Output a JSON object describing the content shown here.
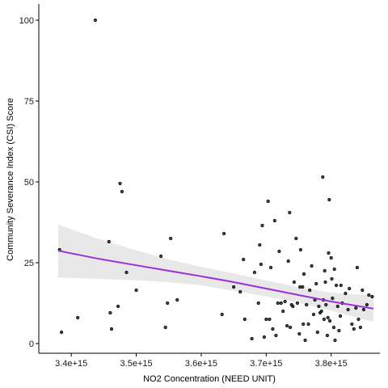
{
  "chart_data": {
    "type": "scatter",
    "xlabel": "NO2 Concentration (NEED UNIT)",
    "ylabel": "Community Severance Index (CSI) Score",
    "xlim": [
      3350000000000000.0,
      3875000000000000.0
    ],
    "ylim": [
      -3,
      105
    ],
    "x_ticks": [
      3400000000000000.0,
      3500000000000000.0,
      3600000000000000.0,
      3700000000000000.0,
      3800000000000000.0
    ],
    "x_tick_labels": [
      "3.4e+15",
      "3.5e+15",
      "3.6e+15",
      "3.7e+15",
      "3.8e+15"
    ],
    "y_ticks": [
      0,
      25,
      50,
      75,
      100
    ],
    "y_tick_labels": [
      "0",
      "25",
      "50",
      "75",
      "100"
    ],
    "grid": false,
    "legend": "none",
    "colors": {
      "points": "#000000",
      "trend": "#9b30d9",
      "ribbon": "#e6e6e6",
      "axis": "#000000"
    },
    "points": [
      {
        "x": 3382000000000000.0,
        "y": 29
      },
      {
        "x": 3385000000000000.0,
        "y": 3.5
      },
      {
        "x": 3410000000000000.0,
        "y": 8
      },
      {
        "x": 3437000000000000.0,
        "y": 100
      },
      {
        "x": 3458000000000000.0,
        "y": 31.5
      },
      {
        "x": 3460000000000000.0,
        "y": 9.5
      },
      {
        "x": 3462000000000000.0,
        "y": 4.5
      },
      {
        "x": 3472000000000000.0,
        "y": 11.5
      },
      {
        "x": 3475000000000000.0,
        "y": 49.5
      },
      {
        "x": 3478000000000000.0,
        "y": 47
      },
      {
        "x": 3485000000000000.0,
        "y": 22
      },
      {
        "x": 3500000000000000.0,
        "y": 16.5
      },
      {
        "x": 3538000000000000.0,
        "y": 27
      },
      {
        "x": 3545000000000000.0,
        "y": 5
      },
      {
        "x": 3548000000000000.0,
        "y": 12.5
      },
      {
        "x": 3553000000000000.0,
        "y": 32.5
      },
      {
        "x": 3563000000000000.0,
        "y": 13.5
      },
      {
        "x": 3632000000000000.0,
        "y": 9
      },
      {
        "x": 3635000000000000.0,
        "y": 34
      },
      {
        "x": 3650000000000000.0,
        "y": 17.5
      },
      {
        "x": 3660000000000000.0,
        "y": 16
      },
      {
        "x": 3665000000000000.0,
        "y": 26
      },
      {
        "x": 3667000000000000.0,
        "y": 7.5
      },
      {
        "x": 3678000000000000.0,
        "y": 1.5
      },
      {
        "x": 3682000000000000.0,
        "y": 22
      },
      {
        "x": 3688000000000000.0,
        "y": 12.5
      },
      {
        "x": 3690000000000000.0,
        "y": 30.5
      },
      {
        "x": 3692000000000000.0,
        "y": 24.5
      },
      {
        "x": 3694000000000000.0,
        "y": 36.5
      },
      {
        "x": 3697000000000000.0,
        "y": 2
      },
      {
        "x": 3700000000000000.0,
        "y": 7.5
      },
      {
        "x": 3703000000000000.0,
        "y": 44
      },
      {
        "x": 3705000000000000.0,
        "y": 7.5
      },
      {
        "x": 3707000000000000.0,
        "y": 23.5
      },
      {
        "x": 3710000000000000.0,
        "y": 4.5
      },
      {
        "x": 3713000000000000.0,
        "y": 38
      },
      {
        "x": 3715000000000000.0,
        "y": 2.5
      },
      {
        "x": 3718000000000000.0,
        "y": 12.5
      },
      {
        "x": 3720000000000000.0,
        "y": 28.5
      },
      {
        "x": 3723000000000000.0,
        "y": 12.5
      },
      {
        "x": 3726000000000000.0,
        "y": 10
      },
      {
        "x": 3729000000000000.0,
        "y": 13
      },
      {
        "x": 3732000000000000.0,
        "y": 5.5
      },
      {
        "x": 3734000000000000.0,
        "y": 25.5
      },
      {
        "x": 3736000000000000.0,
        "y": 40.5
      },
      {
        "x": 3737000000000000.0,
        "y": 5
      },
      {
        "x": 3739000000000000.0,
        "y": 12
      },
      {
        "x": 3741000000000000.0,
        "y": 11.5
      },
      {
        "x": 3743000000000000.0,
        "y": 19
      },
      {
        "x": 3746000000000000.0,
        "y": 32.5
      },
      {
        "x": 3748000000000000.0,
        "y": 12.5
      },
      {
        "x": 3751000000000000.0,
        "y": 3
      },
      {
        "x": 3752000000000000.0,
        "y": 17.5
      },
      {
        "x": 3753000000000000.0,
        "y": 29
      },
      {
        "x": 3756000000000000.0,
        "y": 17.5
      },
      {
        "x": 3757000000000000.0,
        "y": 6
      },
      {
        "x": 3758000000000000.0,
        "y": 21.5
      },
      {
        "x": 3760000000000000.0,
        "y": 1
      },
      {
        "x": 3762000000000000.0,
        "y": 12
      },
      {
        "x": 3765000000000000.0,
        "y": 6
      },
      {
        "x": 3767000000000000.0,
        "y": 16.5
      },
      {
        "x": 3770000000000000.0,
        "y": 24
      },
      {
        "x": 3773000000000000.0,
        "y": 9
      },
      {
        "x": 3775000000000000.0,
        "y": 13.5
      },
      {
        "x": 3777000000000000.0,
        "y": 18.5
      },
      {
        "x": 3779000000000000.0,
        "y": 3.5
      },
      {
        "x": 3781000000000000.0,
        "y": 11.5
      },
      {
        "x": 3783000000000000.0,
        "y": 9.5
      },
      {
        "x": 3785000000000000.0,
        "y": 10
      },
      {
        "x": 3787000000000000.0,
        "y": 51.5
      },
      {
        "x": 3788000000000000.0,
        "y": 13.5
      },
      {
        "x": 3789000000000000.0,
        "y": 7.5
      },
      {
        "x": 3790000000000000.0,
        "y": 22.5
      },
      {
        "x": 3791000000000000.0,
        "y": 19
      },
      {
        "x": 3792000000000000.0,
        "y": 12
      },
      {
        "x": 3794000000000000.0,
        "y": 2.5
      },
      {
        "x": 3795000000000000.0,
        "y": 8
      },
      {
        "x": 3796000000000000.0,
        "y": 28
      },
      {
        "x": 3797000000000000.0,
        "y": 44.5
      },
      {
        "x": 3798000000000000.0,
        "y": 7
      },
      {
        "x": 3800000000000000.0,
        "y": 26.5
      },
      {
        "x": 3801000000000000.0,
        "y": 20
      },
      {
        "x": 3802000000000000.0,
        "y": 14
      },
      {
        "x": 3804000000000000.0,
        "y": 5
      },
      {
        "x": 3805000000000000.0,
        "y": 23
      },
      {
        "x": 3806000000000000.0,
        "y": 1
      },
      {
        "x": 3808000000000000.0,
        "y": 18
      },
      {
        "x": 3810000000000000.0,
        "y": 11.5
      },
      {
        "x": 3812000000000000.0,
        "y": 4
      },
      {
        "x": 3814000000000000.0,
        "y": 8.5
      },
      {
        "x": 3815000000000000.0,
        "y": 18
      },
      {
        "x": 3817000000000000.0,
        "y": 12.5
      },
      {
        "x": 3822000000000000.0,
        "y": 15.5
      },
      {
        "x": 3826000000000000.0,
        "y": 10.5
      },
      {
        "x": 3828000000000000.0,
        "y": 17
      },
      {
        "x": 3832000000000000.0,
        "y": 6
      },
      {
        "x": 3835000000000000.0,
        "y": 4.5
      },
      {
        "x": 3838000000000000.0,
        "y": 11
      },
      {
        "x": 3840000000000000.0,
        "y": 23.5
      },
      {
        "x": 3842000000000000.0,
        "y": 7.5
      },
      {
        "x": 3845000000000000.0,
        "y": 5
      },
      {
        "x": 3848000000000000.0,
        "y": 16.5
      },
      {
        "x": 3850000000000000.0,
        "y": 10.5
      },
      {
        "x": 3855000000000000.0,
        "y": 12
      },
      {
        "x": 3858000000000000.0,
        "y": 15
      },
      {
        "x": 3863000000000000.0,
        "y": 14.5
      }
    ],
    "trend": [
      {
        "x": 3380000000000000.0,
        "y": 28.7
      },
      {
        "x": 3440000000000000.0,
        "y": 26.3
      },
      {
        "x": 3500000000000000.0,
        "y": 24.2
      },
      {
        "x": 3550000000000000.0,
        "y": 22.5
      },
      {
        "x": 3600000000000000.0,
        "y": 20.8
      },
      {
        "x": 3650000000000000.0,
        "y": 19.0
      },
      {
        "x": 3700000000000000.0,
        "y": 17.0
      },
      {
        "x": 3750000000000000.0,
        "y": 15.0
      },
      {
        "x": 3800000000000000.0,
        "y": 13.0
      },
      {
        "x": 3865000000000000.0,
        "y": 10.8
      }
    ],
    "ribbon_upper": [
      {
        "x": 3380000000000000.0,
        "y": 36.8
      },
      {
        "x": 3440000000000000.0,
        "y": 32.5
      },
      {
        "x": 3500000000000000.0,
        "y": 28.8
      },
      {
        "x": 3550000000000000.0,
        "y": 26.0
      },
      {
        "x": 3600000000000000.0,
        "y": 23.7
      },
      {
        "x": 3650000000000000.0,
        "y": 21.7
      },
      {
        "x": 3700000000000000.0,
        "y": 19.5
      },
      {
        "x": 3750000000000000.0,
        "y": 17.4
      },
      {
        "x": 3800000000000000.0,
        "y": 15.7
      },
      {
        "x": 3865000000000000.0,
        "y": 14.9
      }
    ],
    "ribbon_lower": [
      {
        "x": 3380000000000000.0,
        "y": 20.4
      },
      {
        "x": 3440000000000000.0,
        "y": 20.0
      },
      {
        "x": 3500000000000000.0,
        "y": 19.6
      },
      {
        "x": 3550000000000000.0,
        "y": 19.0
      },
      {
        "x": 3600000000000000.0,
        "y": 18.0
      },
      {
        "x": 3650000000000000.0,
        "y": 16.3
      },
      {
        "x": 3700000000000000.0,
        "y": 14.6
      },
      {
        "x": 3750000000000000.0,
        "y": 12.6
      },
      {
        "x": 3800000000000000.0,
        "y": 10.2
      },
      {
        "x": 3865000000000000.0,
        "y": 6.7
      }
    ]
  }
}
